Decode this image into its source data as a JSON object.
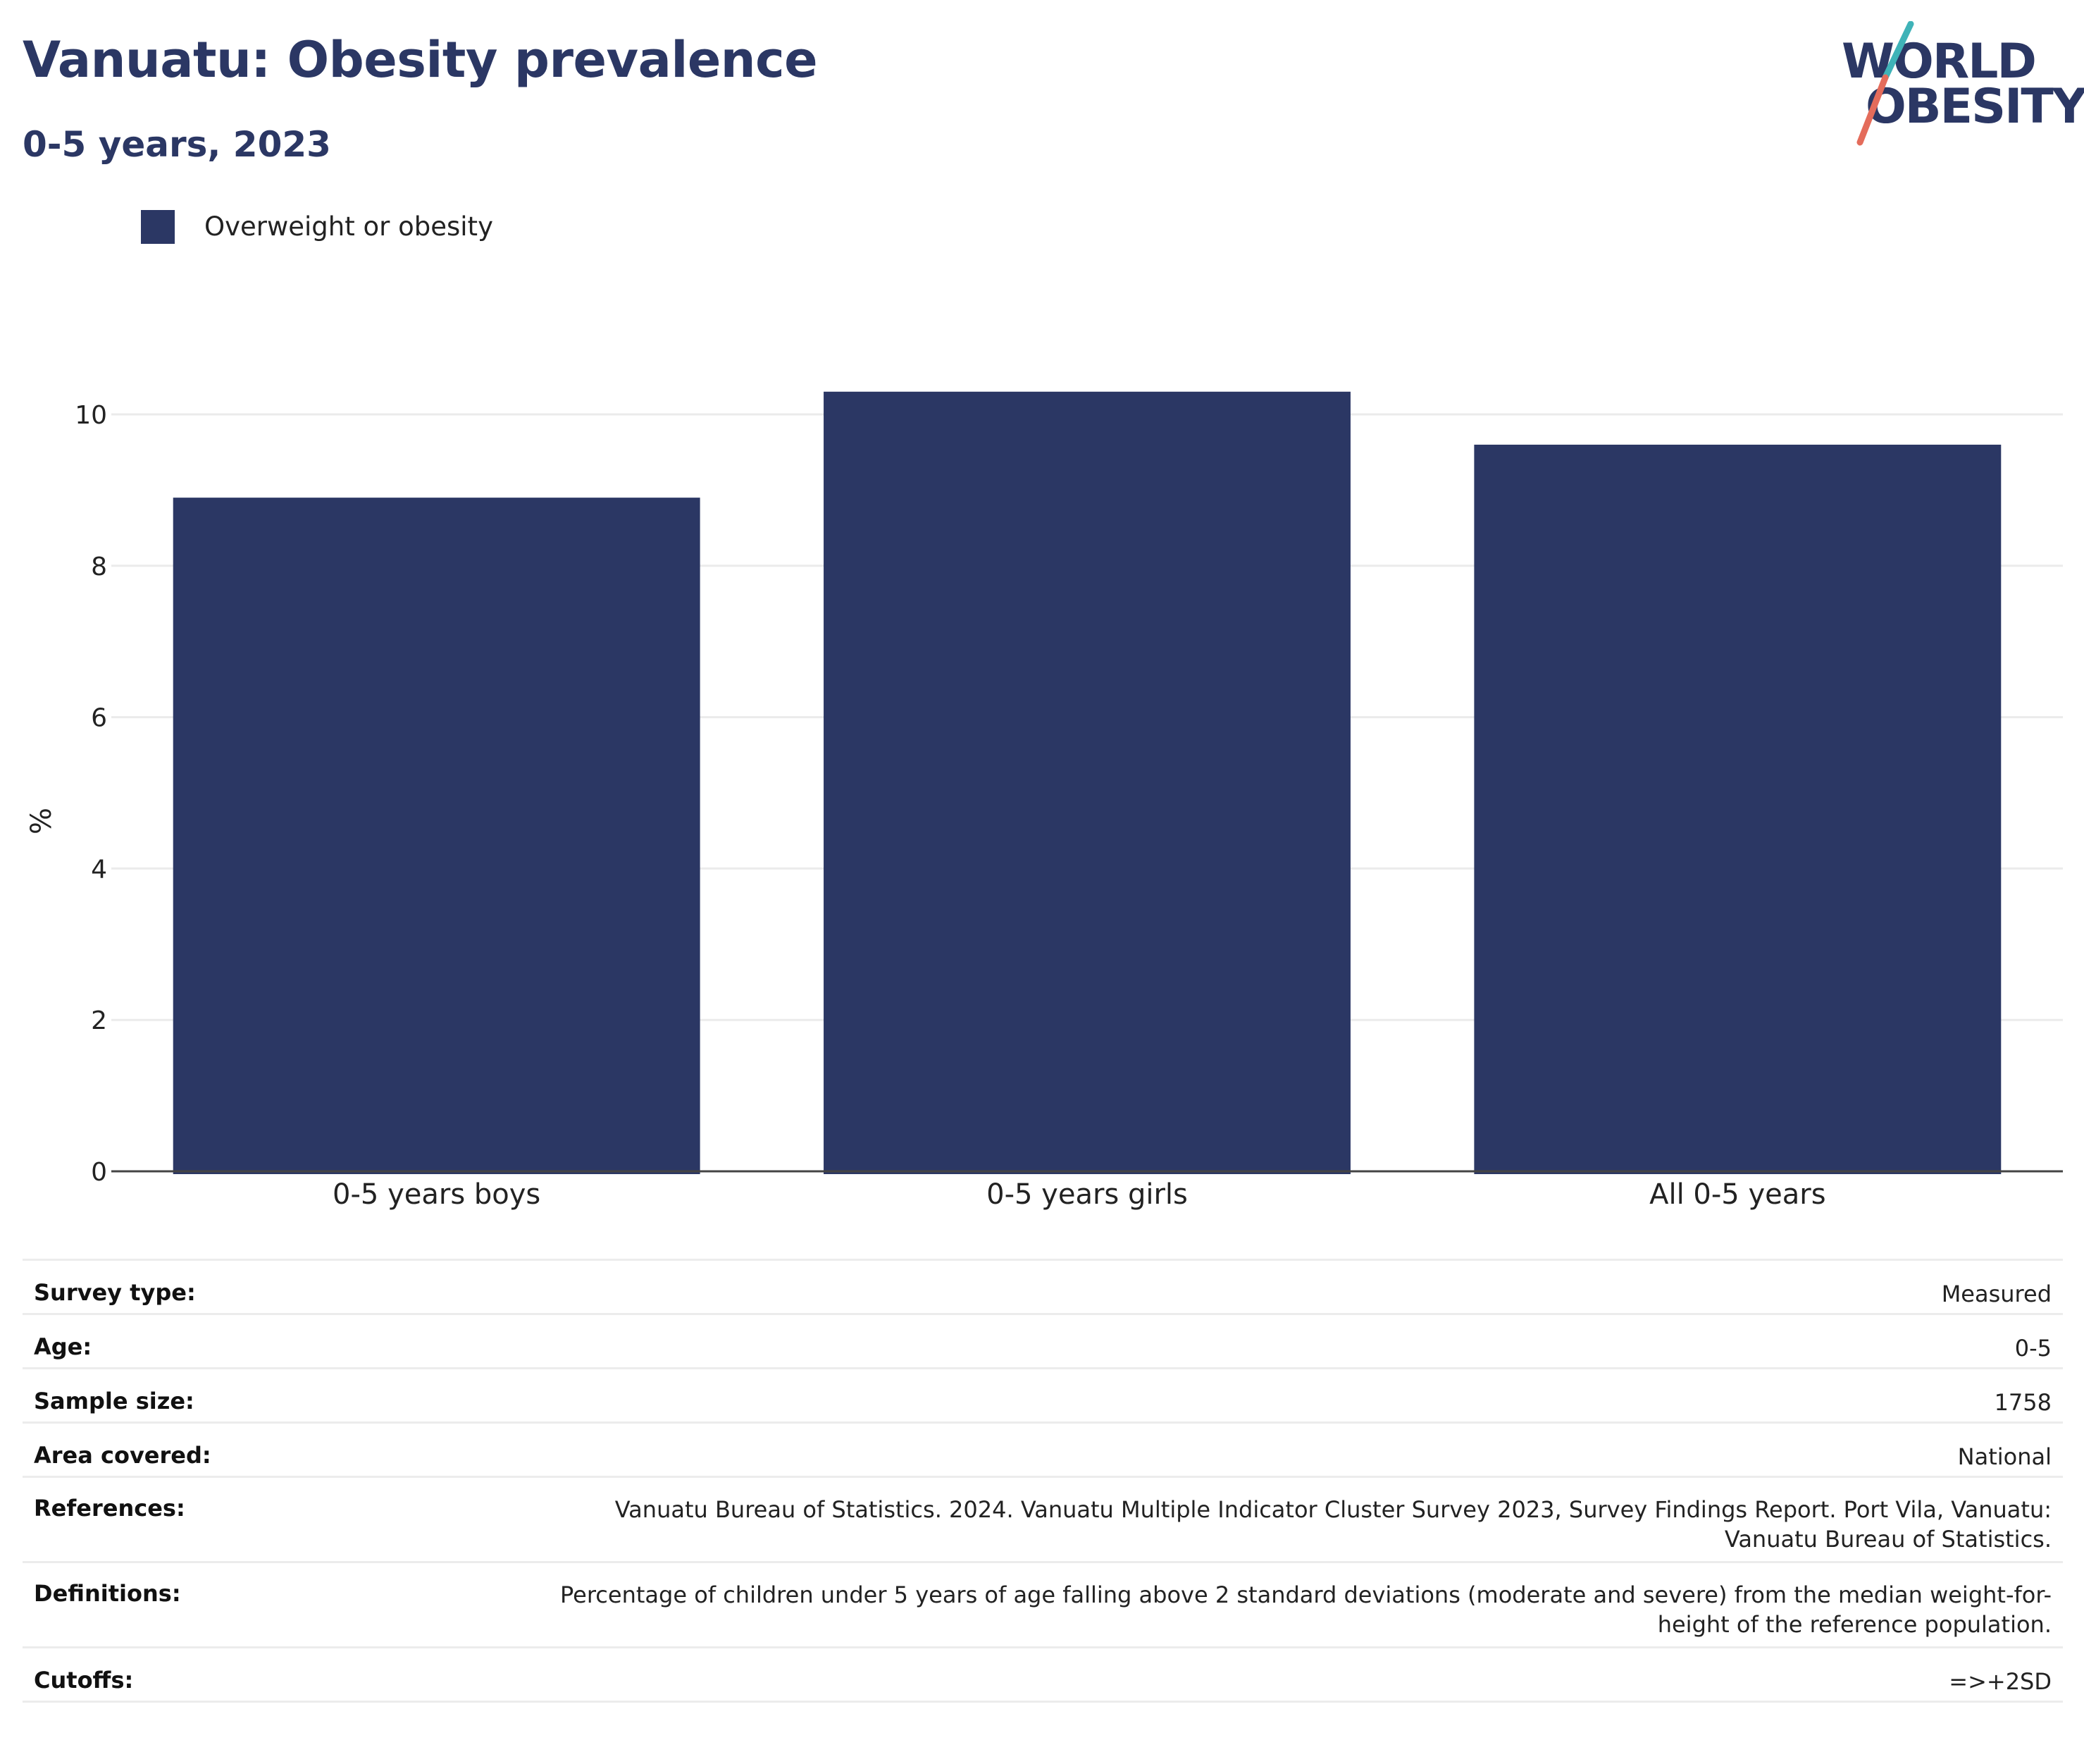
{
  "header": {
    "title": "Vanuatu: Obesity prevalence",
    "subtitle": "0-5 years, 2023",
    "logo_line1": "WORLD",
    "logo_line2": "OBESITY"
  },
  "colors": {
    "bar": "#2b3764",
    "title": "#2b3764",
    "logo_teal": "#3fb3b8",
    "logo_coral": "#e46c5b",
    "grid": "#ebebeb",
    "axis": "#444444"
  },
  "chart_data": {
    "type": "bar",
    "title": "Vanuatu: Obesity prevalence",
    "subtitle": "0-5 years, 2023",
    "categories": [
      "0-5 years boys",
      "0-5 years girls",
      "All 0-5 years"
    ],
    "series": [
      {
        "name": "Overweight or obesity",
        "values": [
          8.9,
          10.3,
          9.6
        ]
      }
    ],
    "xlabel": "",
    "ylabel": "%",
    "ylim": [
      0,
      10.6
    ],
    "yticks": [
      0,
      2,
      4,
      6,
      8,
      10
    ],
    "grid": true,
    "legend_position": "top-left"
  },
  "info_table": [
    {
      "label": "Survey type:",
      "value": "Measured"
    },
    {
      "label": "Age:",
      "value": "0-5"
    },
    {
      "label": "Sample size:",
      "value": "1758"
    },
    {
      "label": "Area covered:",
      "value": "National"
    },
    {
      "label": "References:",
      "value": "Vanuatu Bureau of Statistics. 2024. Vanuatu Multiple Indicator Cluster Survey 2023, Survey Findings Report. Port Vila, Vanuatu: Vanuatu Bureau of Statistics."
    },
    {
      "label": "Definitions:",
      "value": "Percentage of children under 5 years of age falling above 2 standard deviations (moderate and severe) from the median weight-for-height of the reference population."
    },
    {
      "label": "Cutoffs:",
      "value": "=>+2SD"
    }
  ]
}
